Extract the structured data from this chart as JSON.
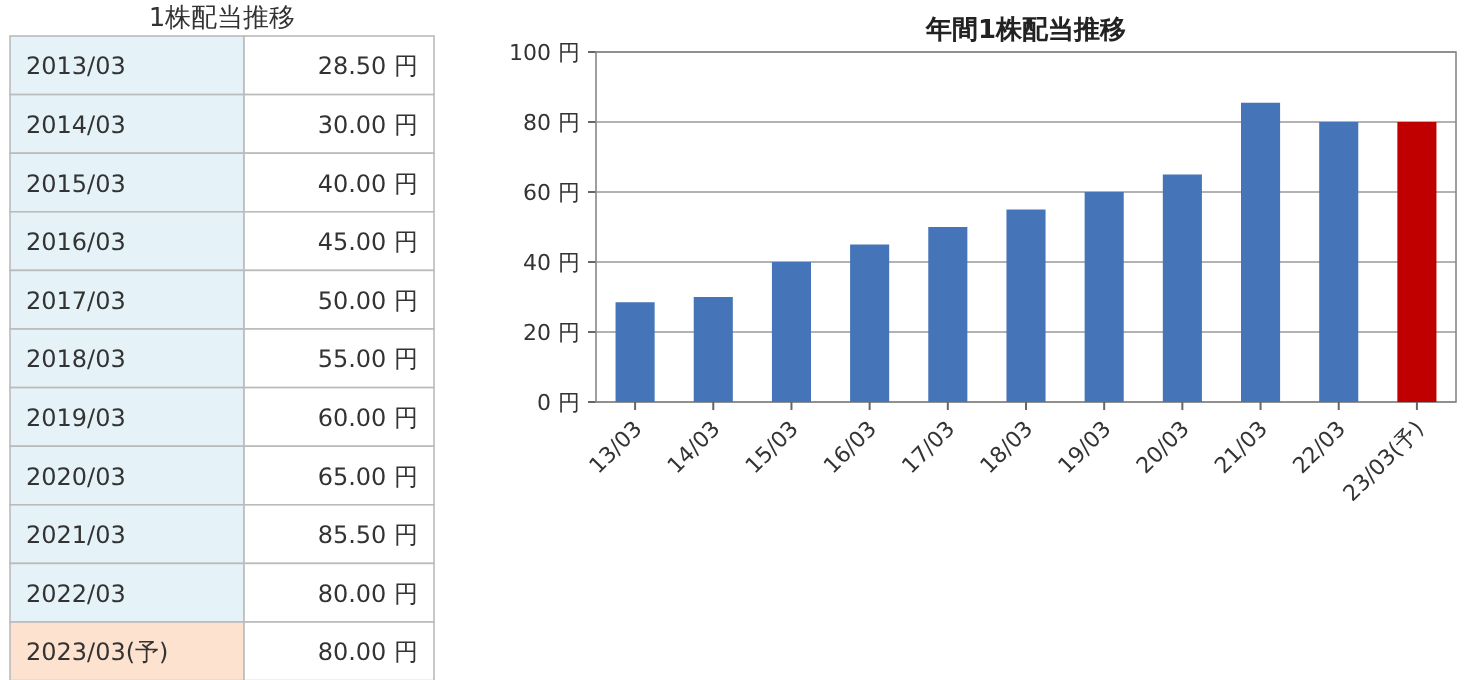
{
  "chart_data": {
    "type": "bar",
    "title": "年間1株配当推移",
    "categories": [
      "13/03",
      "14/03",
      "15/03",
      "16/03",
      "17/03",
      "18/03",
      "19/03",
      "20/03",
      "21/03",
      "22/03",
      "23/03(予)"
    ],
    "values": [
      28.5,
      30,
      40,
      45,
      50,
      55,
      60,
      65,
      85.5,
      80,
      80
    ],
    "colors": [
      "#4674b8",
      "#4674b8",
      "#4674b8",
      "#4674b8",
      "#4674b8",
      "#4674b8",
      "#4674b8",
      "#4674b8",
      "#4674b8",
      "#4674b8",
      "#c00000"
    ],
    "annotations": [
      "1株配当推移",
      "2013/03",
      "2014/03",
      "2015/03",
      "2016/03",
      "2017/03",
      "2018/03",
      "2019/03",
      "2020/03",
      "2021/03",
      "2022/03",
      "2023/03(予)",
      "28.50 円",
      "30.00 円",
      "40.00 円",
      "45.00 円",
      "50.00 円",
      "55.00 円",
      "60.00 円",
      "65.00 円",
      "85.50 円",
      "80.00 円",
      "80.00 円"
    ],
    "ylim": [
      0,
      100
    ],
    "yticks": [
      {
        "value": 0,
        "label": "0 円"
      },
      {
        "value": 20,
        "label": "20 円"
      },
      {
        "value": 40,
        "label": "40 円"
      },
      {
        "value": 60,
        "label": "60 円"
      },
      {
        "value": 80,
        "label": "80 円"
      },
      {
        "value": 100,
        "label": "100 円"
      }
    ],
    "grid": "y"
  }
}
